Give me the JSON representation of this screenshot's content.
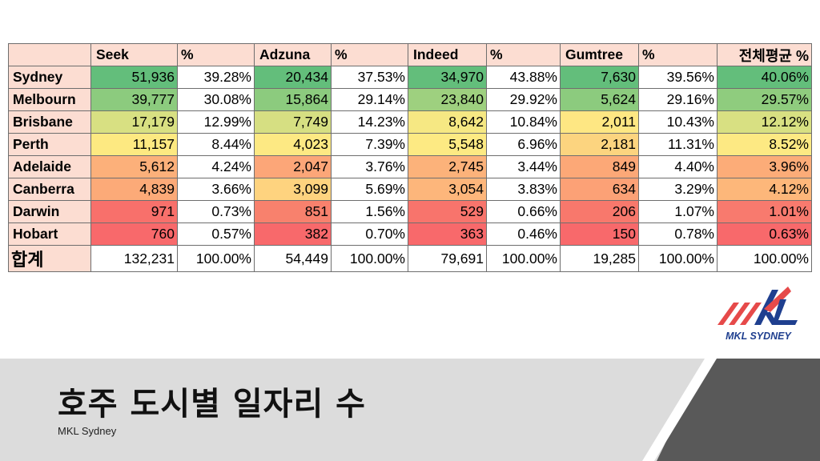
{
  "table": {
    "header": {
      "seek": "Seek",
      "adzuna": "Adzuna",
      "indeed": "Indeed",
      "gumtree": "Gumtree",
      "pct": "%",
      "average": "전체평균 %"
    },
    "rows": [
      {
        "city": "Sydney",
        "seek": "51,936",
        "seek_pct": "39.28%",
        "adzuna": "20,434",
        "adzuna_pct": "37.53%",
        "indeed": "34,970",
        "indeed_pct": "43.88%",
        "gumtree": "7,630",
        "gumtree_pct": "39.56%",
        "avg": "40.06%"
      },
      {
        "city": "Melbourn",
        "seek": "39,777",
        "seek_pct": "30.08%",
        "adzuna": "15,864",
        "adzuna_pct": "29.14%",
        "indeed": "23,840",
        "indeed_pct": "29.92%",
        "gumtree": "5,624",
        "gumtree_pct": "29.16%",
        "avg": "29.57%"
      },
      {
        "city": "Brisbane",
        "seek": "17,179",
        "seek_pct": "12.99%",
        "adzuna": "7,749",
        "adzuna_pct": "14.23%",
        "indeed": "8,642",
        "indeed_pct": "10.84%",
        "gumtree": "2,011",
        "gumtree_pct": "10.43%",
        "avg": "12.12%"
      },
      {
        "city": "Perth",
        "seek": "11,157",
        "seek_pct": "8.44%",
        "adzuna": "4,023",
        "adzuna_pct": "7.39%",
        "indeed": "5,548",
        "indeed_pct": "6.96%",
        "gumtree": "2,181",
        "gumtree_pct": "11.31%",
        "avg": "8.52%"
      },
      {
        "city": "Adelaide",
        "seek": "5,612",
        "seek_pct": "4.24%",
        "adzuna": "2,047",
        "adzuna_pct": "3.76%",
        "indeed": "2,745",
        "indeed_pct": "3.44%",
        "gumtree": "849",
        "gumtree_pct": "4.40%",
        "avg": "3.96%"
      },
      {
        "city": "Canberra",
        "seek": "4,839",
        "seek_pct": "3.66%",
        "adzuna": "3,099",
        "adzuna_pct": "5.69%",
        "indeed": "3,054",
        "indeed_pct": "3.83%",
        "gumtree": "634",
        "gumtree_pct": "3.29%",
        "avg": "4.12%"
      },
      {
        "city": "Darwin",
        "seek": "971",
        "seek_pct": "0.73%",
        "adzuna": "851",
        "adzuna_pct": "1.56%",
        "indeed": "529",
        "indeed_pct": "0.66%",
        "gumtree": "206",
        "gumtree_pct": "1.07%",
        "avg": "1.01%"
      },
      {
        "city": "Hobart",
        "seek": "760",
        "seek_pct": "0.57%",
        "adzuna": "382",
        "adzuna_pct": "0.70%",
        "indeed": "363",
        "indeed_pct": "0.46%",
        "gumtree": "150",
        "gumtree_pct": "0.78%",
        "avg": "0.63%"
      }
    ],
    "total": {
      "label": "합계",
      "seek": "132,231",
      "seek_pct": "100.00%",
      "adzuna": "54,449",
      "adzuna_pct": "100.00%",
      "indeed": "79,691",
      "indeed_pct": "100.00%",
      "gumtree": "19,285",
      "gumtree_pct": "100.00%",
      "avg": "100.00%"
    },
    "colors": {
      "header_bg": "#fcddd2",
      "seek": [
        "#63be7b",
        "#8ccb7e",
        "#d8e082",
        "#fde981",
        "#fcb07a",
        "#fcaa78",
        "#f8706b",
        "#f8696b"
      ],
      "adzuna": [
        "#63be7b",
        "#8ccb7e",
        "#d6df82",
        "#fde983",
        "#fca678",
        "#fed37f",
        "#f8816d",
        "#f8696b"
      ],
      "indeed": [
        "#63be7b",
        "#9ed07f",
        "#f6e883",
        "#fdea83",
        "#fcb27a",
        "#fdb67b",
        "#f8746c",
        "#f8696b"
      ],
      "gumtree": [
        "#63be7b",
        "#8ccb7e",
        "#fee783",
        "#fcd47f",
        "#fca877",
        "#fca176",
        "#f8786c",
        "#f8696b"
      ],
      "avg": [
        "#63be7b",
        "#8fcc7e",
        "#d8e082",
        "#fde983",
        "#fcac78",
        "#fdb77a",
        "#f87a6e",
        "#f8696b"
      ]
    }
  },
  "logo": {
    "brand_text": "MKL SYDNEY",
    "primary_color": "#e64a4a",
    "secondary_color": "#1f3f8f"
  },
  "footer": {
    "title": "호주 도시별 일자리 수",
    "subtitle": "MKL Sydney"
  }
}
